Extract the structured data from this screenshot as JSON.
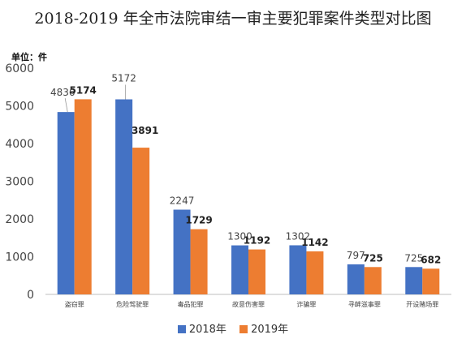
{
  "chart_data": {
    "type": "bar",
    "title": "2018-2019 年全市法院审结一审主要犯罪案件类型对比图",
    "unit": "单位：件",
    "categories": [
      "盗窃罪",
      "危险驾驶罪",
      "毒品犯罪",
      "故意伤害罪",
      "诈骗罪",
      "寻衅滋事罪",
      "开设赌场罪"
    ],
    "series": [
      {
        "name": "2018年",
        "color": "#4472c4",
        "values": [
          4836,
          5172,
          2247,
          1300,
          1302,
          797,
          725
        ]
      },
      {
        "name": "2019年",
        "color": "#ed7d31",
        "values": [
          5174,
          3891,
          1729,
          1192,
          1142,
          725,
          682
        ]
      }
    ],
    "ylim": [
      0,
      6000
    ],
    "yticks": [
      0,
      1000,
      2000,
      3000,
      4000,
      5000,
      6000
    ],
    "grid": false,
    "legend_position": "bottom-center"
  }
}
